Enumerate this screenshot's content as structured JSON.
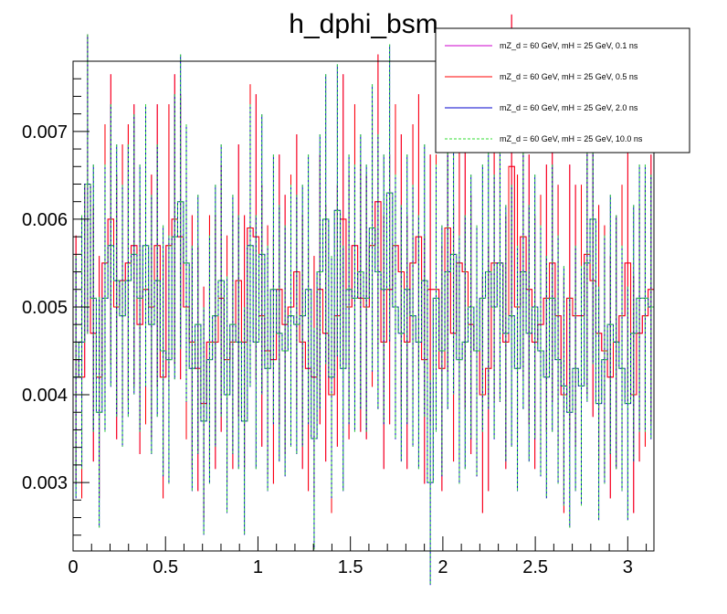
{
  "chart_data": {
    "type": "line",
    "title": "h_dphi_bsm",
    "xlabel": "",
    "ylabel": "",
    "xlim": [
      0,
      3.1416
    ],
    "ylim": [
      0.00222,
      0.0078
    ],
    "x_ticks": [
      "0",
      "0.5",
      "1",
      "1.5",
      "2",
      "2.5",
      "3"
    ],
    "y_ticks": [
      "0.003",
      "0.004",
      "0.005",
      "0.006",
      "0.007"
    ],
    "grid": false,
    "legend_position": "top-right",
    "n_bins": 100,
    "series": [
      {
        "name": "mZ_d = 60 GeV, mH = 25 GeV, 0.1 ns",
        "color": "#cc00cc",
        "style": "solid",
        "values": [
          0.0044,
          0.0042,
          0.0064,
          0.0047,
          0.0042,
          0.0055,
          0.006,
          0.005,
          0.0053,
          0.0055,
          0.0057,
          0.0048,
          0.0052,
          0.005,
          0.0057,
          0.0042,
          0.0057,
          0.006,
          0.0058,
          0.005,
          0.0046,
          0.0043,
          0.0039,
          0.0046,
          0.0046,
          0.0051,
          0.0044,
          0.0046,
          0.0053,
          0.0046,
          0.0059,
          0.0058,
          0.0049,
          0.0045,
          0.0044,
          0.0052,
          0.0048,
          0.005,
          0.0054,
          0.0046,
          0.0043,
          0.0042,
          0.0052,
          0.0047,
          0.004,
          0.0049,
          0.006,
          0.005,
          0.0057,
          0.0051,
          0.005,
          0.0057,
          0.0062,
          0.0046,
          0.0052,
          0.0057,
          0.0054,
          0.0046,
          0.0055,
          0.0058,
          0.0044,
          0.0052,
          0.0052,
          0.0043,
          0.0059,
          0.0047,
          0.0055,
          0.0054,
          0.0048,
          0.0045,
          0.004,
          0.0043,
          0.0055,
          0.0055,
          0.0046,
          0.0066,
          0.005,
          0.0058,
          0.0052,
          0.0046,
          0.0048,
          0.0051,
          0.0055,
          0.0049,
          0.004,
          0.0051,
          0.0049,
          0.0049,
          0.0056,
          0.0053,
          0.0047,
          0.0045,
          0.0042,
          0.0046,
          0.0049,
          0.0055,
          0.004,
          0.0047,
          0.0049,
          0.0052
        ]
      },
      {
        "name": "mZ_d = 60 GeV, mH = 25 GeV, 0.5 ns",
        "color": "#ff0000",
        "style": "solid",
        "values": [
          0.0044,
          0.0042,
          0.0064,
          0.0047,
          0.0042,
          0.0055,
          0.006,
          0.005,
          0.0053,
          0.0055,
          0.0057,
          0.0048,
          0.0052,
          0.005,
          0.0057,
          0.0042,
          0.0057,
          0.006,
          0.0058,
          0.005,
          0.0046,
          0.0043,
          0.0039,
          0.0046,
          0.0046,
          0.0051,
          0.0044,
          0.0046,
          0.0053,
          0.0046,
          0.0059,
          0.0058,
          0.0049,
          0.0045,
          0.0044,
          0.0052,
          0.0048,
          0.005,
          0.0054,
          0.0046,
          0.0043,
          0.0042,
          0.0052,
          0.0047,
          0.004,
          0.0049,
          0.006,
          0.005,
          0.0057,
          0.0051,
          0.005,
          0.0057,
          0.0062,
          0.0046,
          0.0052,
          0.0057,
          0.0054,
          0.0046,
          0.0055,
          0.0058,
          0.0044,
          0.0052,
          0.0052,
          0.0043,
          0.0059,
          0.0047,
          0.0055,
          0.0054,
          0.0048,
          0.0045,
          0.004,
          0.0043,
          0.0055,
          0.0055,
          0.0046,
          0.0066,
          0.005,
          0.0058,
          0.0052,
          0.0046,
          0.0048,
          0.0051,
          0.0055,
          0.0049,
          0.004,
          0.0051,
          0.0049,
          0.0049,
          0.0056,
          0.0053,
          0.0047,
          0.0045,
          0.0042,
          0.0046,
          0.0049,
          0.0055,
          0.004,
          0.0047,
          0.0049,
          0.0052
        ]
      },
      {
        "name": "mZ_d = 60 GeV, mH = 25 GeV, 2.0 ns",
        "color": "#0000cc",
        "style": "solid",
        "values": [
          0.0042,
          0.0046,
          0.0064,
          0.0051,
          0.0038,
          0.0051,
          0.0057,
          0.0053,
          0.0049,
          0.0053,
          0.0056,
          0.0051,
          0.0057,
          0.0048,
          0.0053,
          0.0045,
          0.0044,
          0.0058,
          0.0062,
          0.0055,
          0.0043,
          0.0048,
          0.0037,
          0.0044,
          0.0049,
          0.0053,
          0.004,
          0.0048,
          0.0046,
          0.0037,
          0.0057,
          0.0046,
          0.0056,
          0.0043,
          0.0052,
          0.0047,
          0.0045,
          0.0049,
          0.0048,
          0.0049,
          0.0052,
          0.0035,
          0.0054,
          0.006,
          0.0042,
          0.0061,
          0.0043,
          0.0052,
          0.0051,
          0.0054,
          0.0051,
          0.0059,
          0.0054,
          0.0052,
          0.0063,
          0.005,
          0.0047,
          0.0052,
          0.0049,
          0.0046,
          0.0053,
          0.003,
          0.0051,
          0.0045,
          0.0054,
          0.0056,
          0.0044,
          0.0046,
          0.005,
          0.0045,
          0.0051,
          0.0054,
          0.005,
          0.0055,
          0.0047,
          0.0049,
          0.0043,
          0.0054,
          0.0047,
          0.005,
          0.0045,
          0.0042,
          0.0051,
          0.0044,
          0.0041,
          0.0038,
          0.0043,
          0.0041,
          0.0055,
          0.006,
          0.0039,
          0.0044,
          0.0048,
          0.0046,
          0.0043,
          0.0039,
          0.0047,
          0.0051,
          0.0051,
          0.005
        ]
      },
      {
        "name": "mZ_d = 60 GeV, mH = 25 GeV, 10.0 ns",
        "color": "#33dd33",
        "style": "dashed",
        "values": [
          0.0042,
          0.0046,
          0.0064,
          0.0051,
          0.0038,
          0.0051,
          0.0057,
          0.0053,
          0.0049,
          0.0053,
          0.0056,
          0.0051,
          0.0057,
          0.0048,
          0.0053,
          0.0045,
          0.0044,
          0.0058,
          0.0062,
          0.0055,
          0.0043,
          0.0048,
          0.0037,
          0.0044,
          0.0049,
          0.0053,
          0.004,
          0.0048,
          0.0046,
          0.0037,
          0.0057,
          0.0046,
          0.0056,
          0.0043,
          0.0052,
          0.0047,
          0.0045,
          0.0049,
          0.0048,
          0.0049,
          0.0052,
          0.0035,
          0.0054,
          0.006,
          0.0042,
          0.0061,
          0.0043,
          0.0052,
          0.0051,
          0.0054,
          0.0051,
          0.0059,
          0.0054,
          0.0052,
          0.0063,
          0.005,
          0.0047,
          0.0052,
          0.0049,
          0.0046,
          0.0053,
          0.003,
          0.0051,
          0.0045,
          0.0054,
          0.0056,
          0.0044,
          0.0046,
          0.005,
          0.0045,
          0.0051,
          0.0054,
          0.005,
          0.0055,
          0.0047,
          0.0049,
          0.0043,
          0.0054,
          0.0047,
          0.005,
          0.0045,
          0.0042,
          0.0051,
          0.0044,
          0.0041,
          0.0038,
          0.0043,
          0.0041,
          0.0055,
          0.006,
          0.0039,
          0.0044,
          0.0048,
          0.0046,
          0.0043,
          0.0039,
          0.0047,
          0.0051,
          0.0051,
          0.005
        ]
      }
    ]
  }
}
